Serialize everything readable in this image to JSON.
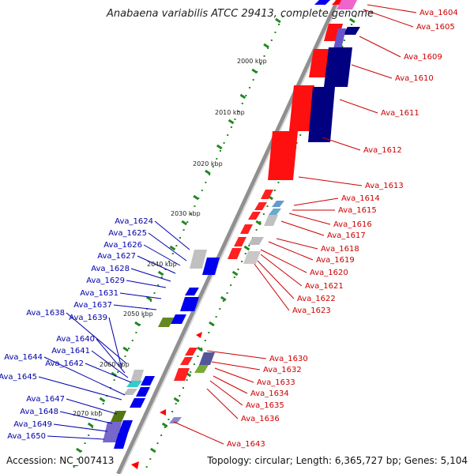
{
  "title": "Anabaena variabilis ATCC 29413, complete genome",
  "accession_text": "Accession: NC_007413",
  "topology_text": "Topology: circular; Length: 6,365,727 bp; Genes: 5,104",
  "colors": {
    "forward_label": "#cc0000",
    "reverse_label": "#0000aa",
    "backbone": "#888888",
    "tick": "#228822"
  },
  "kbp_markers": [
    "2000 kbp",
    "2010 kbp",
    "2020 kbp",
    "2030 kbp",
    "2040 kbp",
    "2050 kbp",
    "2060 kbp",
    "2070 kbp"
  ],
  "forward_genes": [
    "Ava_1604",
    "Ava_1605",
    "Ava_1609",
    "Ava_1610",
    "Ava_1611",
    "Ava_1612",
    "Ava_1613",
    "Ava_1614",
    "Ava_1615",
    "Ava_1616",
    "Ava_1617",
    "Ava_1618",
    "Ava_1619",
    "Ava_1620",
    "Ava_1621",
    "Ava_1622",
    "Ava_1623",
    "Ava_1630",
    "Ava_1632",
    "Ava_1633",
    "Ava_1634",
    "Ava_1635",
    "Ava_1636",
    "Ava_1643"
  ],
  "reverse_genes": [
    "Ava_1624",
    "Ava_1625",
    "Ava_1626",
    "Ava_1627",
    "Ava_1628",
    "Ava_1629",
    "Ava_1631",
    "Ava_1637",
    "Ava_1638",
    "Ava_1639",
    "Ava_1640",
    "Ava_1641",
    "Ava_1642",
    "Ava_1644",
    "Ava_1645",
    "Ava_1647",
    "Ava_1648",
    "Ava_1649",
    "Ava_1650"
  ]
}
